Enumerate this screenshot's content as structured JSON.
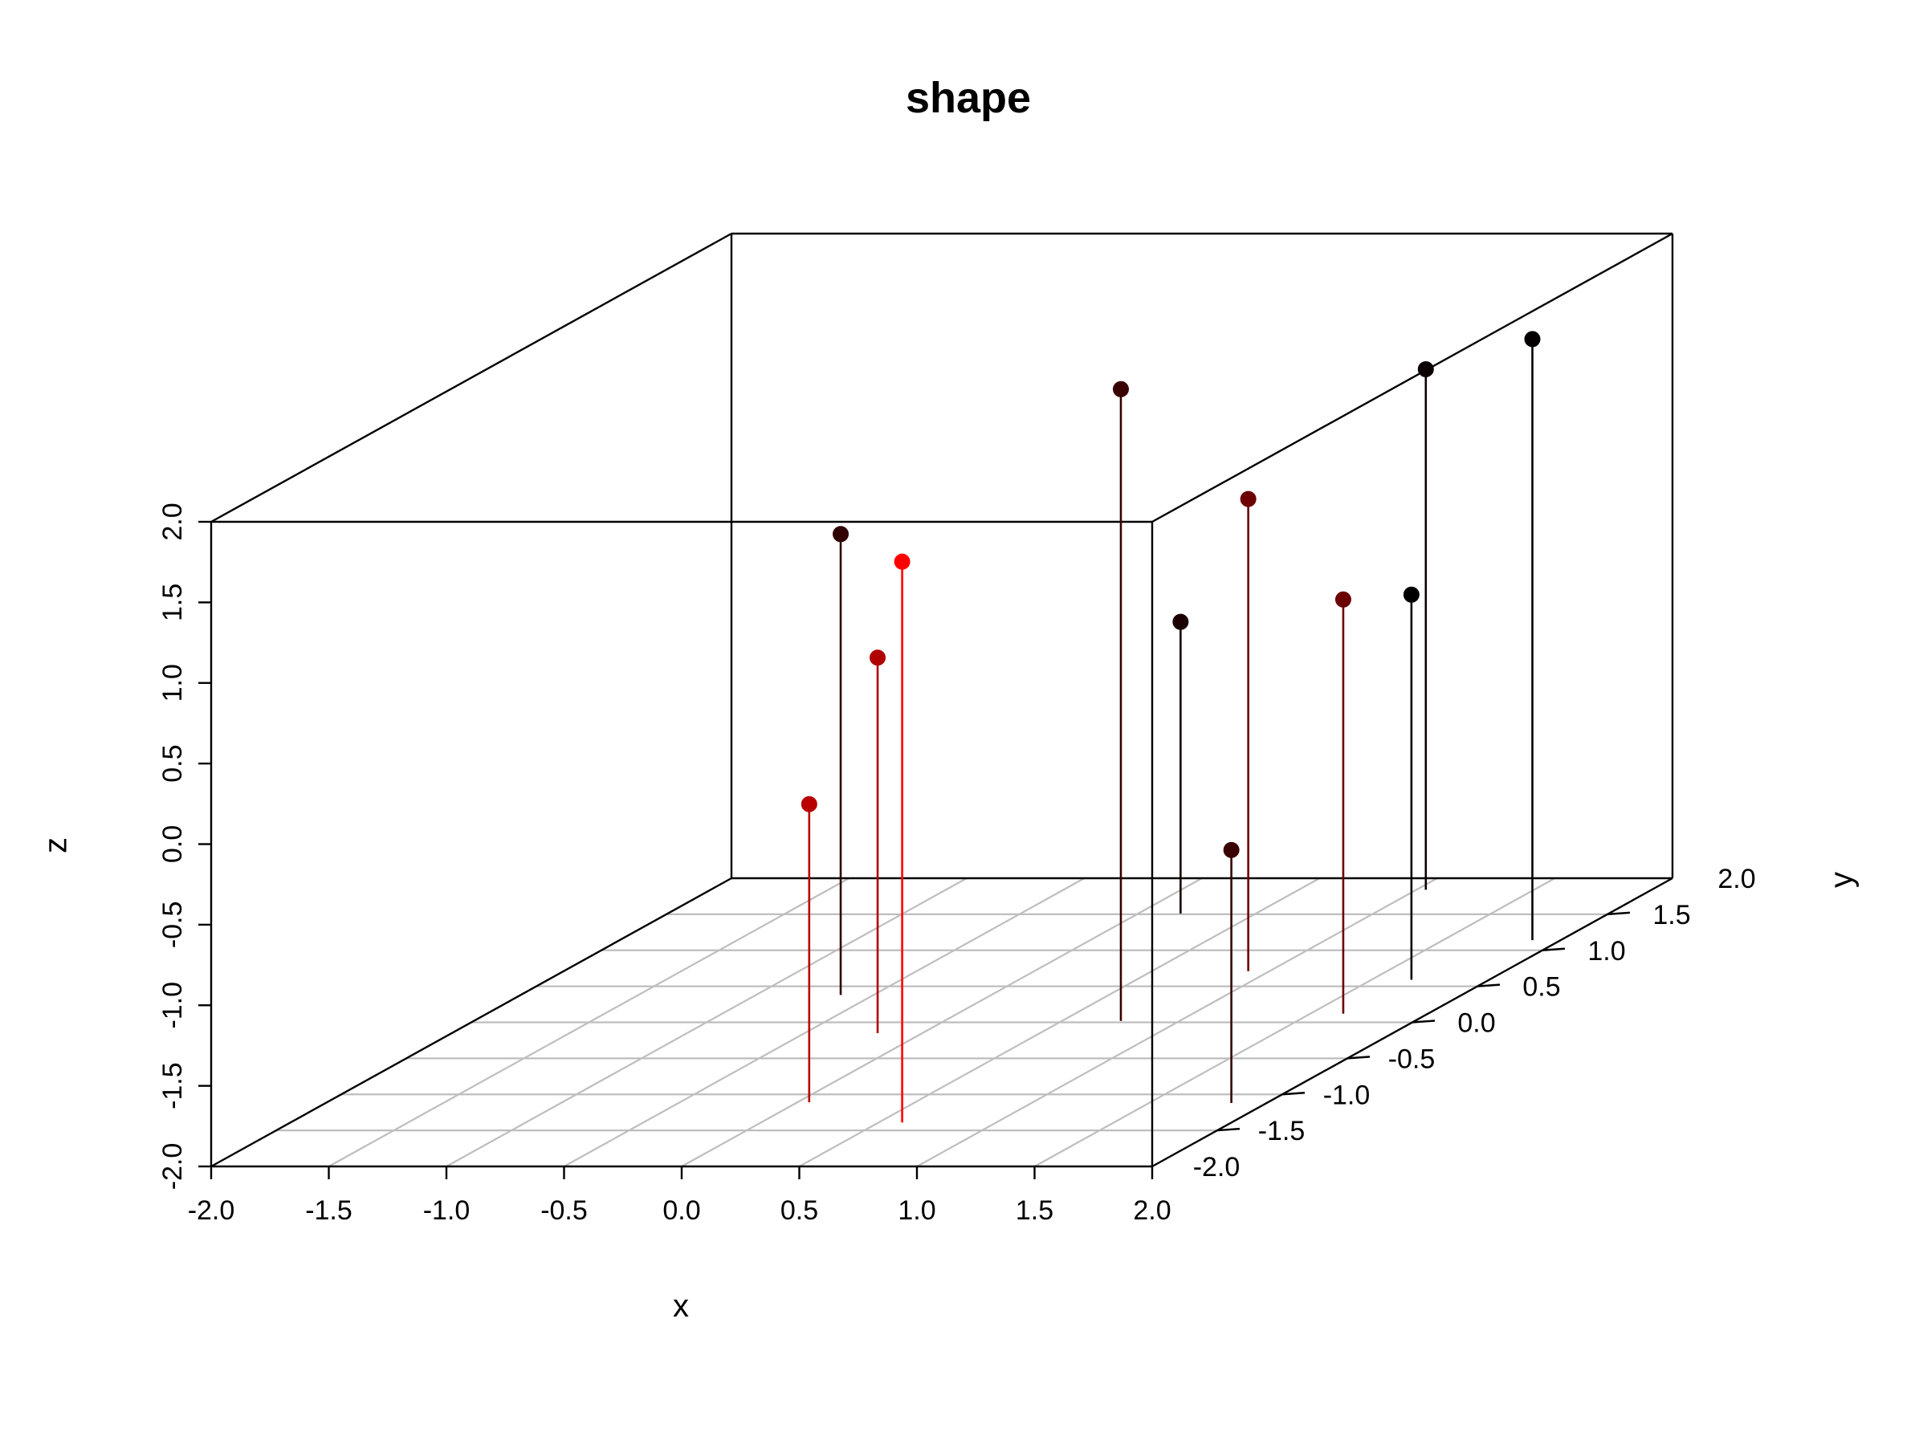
{
  "chart_data": {
    "type": "scatter3d",
    "title": "shape",
    "xlabel": "x",
    "ylabel": "y",
    "zlabel": "z",
    "xlim": [
      -2,
      2
    ],
    "ylim": [
      -2,
      2
    ],
    "zlim": [
      -2,
      2
    ],
    "x_ticks": [
      "-2.0",
      "-1.5",
      "-1.0",
      "-0.5",
      "0.0",
      "0.5",
      "1.0",
      "1.5",
      "2.0"
    ],
    "y_ticks": [
      "-2.0",
      "-1.5",
      "-1.0",
      "-0.5",
      "0.0",
      "0.5",
      "1.0",
      "1.5",
      "2.0"
    ],
    "z_ticks": [
      "-2.0",
      "-1.5",
      "-1.0",
      "-0.5",
      "0.0",
      "0.5",
      "1.0",
      "1.5",
      "2.0"
    ],
    "grid": true,
    "box": true,
    "type_h": true,
    "colors": {
      "box": "#000000",
      "grid": "#bebebe",
      "background": "#ffffff"
    },
    "points": [
      {
        "x": -0.19,
        "y": -0.15,
        "z": 0.33,
        "color": "#b00000"
      },
      {
        "x": 0.75,
        "y": 0.02,
        "z": 1.92,
        "color": "#3a0000"
      },
      {
        "x": -0.64,
        "y": 0.38,
        "z": 0.86,
        "color": "#300000"
      },
      {
        "x": 0.05,
        "y": -1.11,
        "z": -0.15,
        "color": "#b80000"
      },
      {
        "x": 0.91,
        "y": 0.71,
        "z": 0.93,
        "color": "#6e0000"
      },
      {
        "x": 0.18,
        "y": 1.51,
        "z": -0.19,
        "color": "#1a0000"
      },
      {
        "x": 1.64,
        "y": 0.12,
        "z": 0.57,
        "color": "#6a0000"
      },
      {
        "x": 0.6,
        "y": -1.39,
        "z": 1.48,
        "color": "#ff0000"
      },
      {
        "x": 1.04,
        "y": 1.84,
        "z": 1.23,
        "color": "#0a0000"
      },
      {
        "x": 1.88,
        "y": 1.14,
        "z": 1.73,
        "color": "#050000"
      },
      {
        "x": 1.67,
        "y": 0.59,
        "z": 0.39,
        "color": "#000000"
      },
      {
        "x": 1.85,
        "y": -1.12,
        "z": -0.43,
        "color": "#3a0000"
      }
    ]
  }
}
